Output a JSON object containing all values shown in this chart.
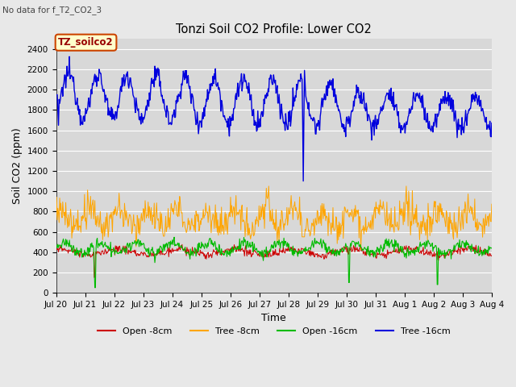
{
  "title": "Tonzi Soil CO2 Profile: Lower CO2",
  "subtitle": "No data for f_T2_CO2_3",
  "xlabel": "Time",
  "ylabel": "Soil CO2 (ppm)",
  "ylim": [
    0,
    2500
  ],
  "yticks": [
    0,
    200,
    400,
    600,
    800,
    1000,
    1200,
    1400,
    1600,
    1800,
    2000,
    2200,
    2400
  ],
  "x_tick_labels": [
    "Jul 20",
    "Jul 21",
    "Jul 22",
    "Jul 23",
    "Jul 24",
    "Jul 25",
    "Jul 26",
    "Jul 27",
    "Jul 28",
    "Jul 29",
    "Jul 30",
    "Jul 31",
    "Aug 1",
    "Aug 2",
    "Aug 3",
    "Aug 4"
  ],
  "colors": {
    "open_8cm": "#cc0000",
    "tree_8cm": "#ffa500",
    "open_16cm": "#00bb00",
    "tree_16cm": "#0000dd"
  },
  "legend_label_box": "TZ_soilco2",
  "legend_labels": [
    "Open -8cm",
    "Tree -8cm",
    "Open -16cm",
    "Tree -16cm"
  ],
  "plot_bg": "#d8d8d8",
  "fig_bg": "#e8e8e8",
  "grid_color": "#ffffff"
}
